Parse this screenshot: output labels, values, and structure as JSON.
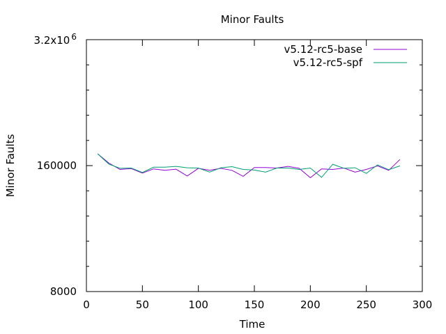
{
  "chart_data": {
    "type": "line",
    "title": "Minor Faults",
    "xlabel": "Time",
    "ylabel": "Minor Faults",
    "xlim": [
      0,
      300
    ],
    "ylim": [
      8000,
      3200000
    ],
    "yscale": "log",
    "grid": false,
    "legend_position": "top-right",
    "x_ticks": [
      0,
      50,
      100,
      150,
      200,
      250,
      300
    ],
    "x_tick_labels": [
      "0",
      "50",
      "100",
      "150",
      "200",
      "250",
      "300"
    ],
    "y_ticks": [
      8000,
      160000,
      3200000
    ],
    "y_tick_labels": [
      "8000",
      "160000",
      "3.2x10^6"
    ],
    "y_top_label": {
      "base": "3.2x10",
      "exponent": "6"
    },
    "x": [
      10,
      20,
      30,
      40,
      50,
      60,
      70,
      80,
      90,
      100,
      110,
      120,
      130,
      140,
      150,
      160,
      170,
      180,
      190,
      200,
      210,
      220,
      230,
      240,
      250,
      260,
      270,
      280
    ],
    "series": [
      {
        "name": "v5.12-rc5-base",
        "color": "#9400d3",
        "values": [
          212000,
          170000,
          146000,
          149000,
          134000,
          148000,
          143000,
          147000,
          125000,
          150000,
          143000,
          150000,
          143000,
          124000,
          153000,
          153000,
          151000,
          157000,
          150000,
          120000,
          148000,
          146000,
          151000,
          137000,
          146000,
          159000,
          143000,
          185000
        ]
      },
      {
        "name": "v5.12-rc5-spf",
        "color": "#009e73",
        "values": [
          212000,
          166000,
          150000,
          151000,
          136000,
          154000,
          154000,
          157000,
          152000,
          151000,
          137000,
          152000,
          156000,
          146000,
          144000,
          137000,
          151000,
          151000,
          146000,
          151000,
          121000,
          165000,
          150000,
          152000,
          133000,
          163000,
          145000,
          159000
        ]
      }
    ]
  }
}
